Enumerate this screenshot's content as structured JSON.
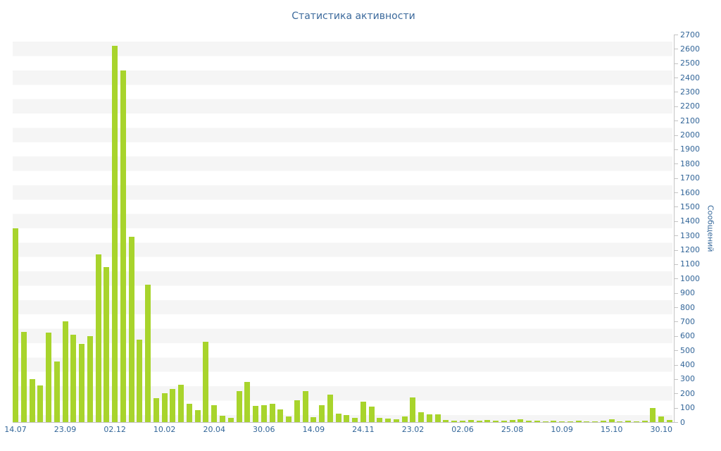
{
  "chart_data": {
    "type": "bar",
    "title": "Статистика активности",
    "ylabel": "Сообщений",
    "xlabel": "",
    "ylim": [
      0,
      2700
    ],
    "y_tick_step": 100,
    "grid": "horizontal-stripes",
    "legend": "none",
    "x_tick_labels": [
      "14.07",
      "23.09",
      "02.12",
      "10.02",
      "20.04",
      "30.06",
      "14.09",
      "24.11",
      "23.02",
      "02.06",
      "25.08",
      "10.09",
      "15.10",
      "30.10"
    ],
    "x_tick_indices": [
      0,
      6,
      12,
      18,
      24,
      30,
      36,
      42,
      48,
      54,
      60,
      66,
      72,
      78
    ],
    "values": [
      1350,
      630,
      300,
      255,
      625,
      420,
      700,
      610,
      545,
      600,
      1170,
      1080,
      2620,
      2450,
      1290,
      575,
      955,
      165,
      200,
      230,
      260,
      130,
      85,
      560,
      120,
      45,
      30,
      215,
      280,
      115,
      120,
      130,
      90,
      40,
      150,
      215,
      35,
      120,
      190,
      60,
      50,
      30,
      140,
      110,
      30,
      25,
      20,
      40,
      170,
      70,
      55,
      55,
      15,
      12,
      10,
      15,
      10,
      15,
      10,
      10,
      15,
      20,
      10,
      10,
      6,
      8,
      5,
      5,
      8,
      5,
      5,
      10,
      20,
      5,
      8,
      5,
      10,
      100,
      40,
      15
    ],
    "colors": {
      "title_color": "#3c6a9c",
      "label_color": "#336699",
      "bar_color": "#a8d42c",
      "stripe_color": "#f5f5f5",
      "axis_color": "#c3c3c3",
      "background": "#ffffff"
    }
  }
}
